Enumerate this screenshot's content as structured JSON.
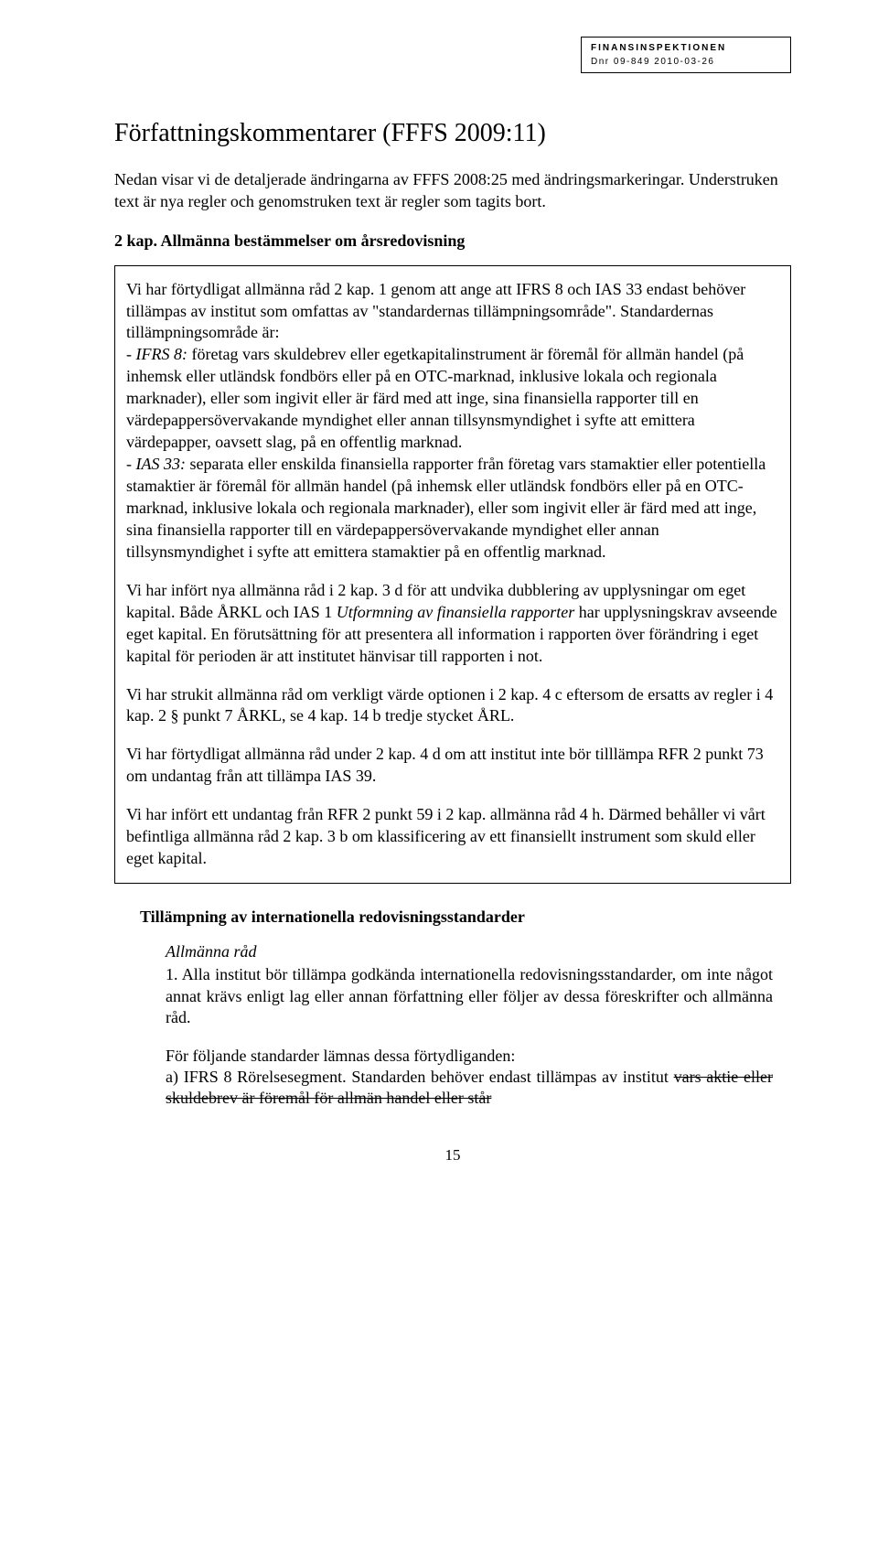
{
  "header": {
    "org": "FINANSINSPEKTIONEN",
    "ref": "Dnr 09-849 2010-03-26"
  },
  "title": "Författningskommentarer (FFFS 2009:11)",
  "intro": "Nedan visar vi de detaljerade ändringarna av FFFS 2008:25 med ändringsmarkeringar. Understruken text är nya regler och genomstruken text är regler som tagits bort.",
  "section_heading": "2 kap. Allmänna bestämmelser om årsredovisning",
  "box": {
    "p1a": "Vi har förtydligat allmänna råd 2 kap. 1 genom att ange att IFRS 8 och IAS 33 endast behöver tillämpas av institut som omfattas av \"standardernas tillämpningsområde\". Standardernas tillämpningsområde är:",
    "p1b_label": "- IFRS 8:",
    "p1b": " företag vars skuldebrev eller egetkapitalinstrument är föremål för allmän handel (på inhemsk eller utländsk fondbörs eller på en OTC-marknad, inklusive lokala och regionala marknader), eller som ingivit eller är färd med att inge, sina finansiella rapporter till en värdepappersövervakande myndighet eller annan tillsynsmyndighet i syfte att emittera värdepapper, oavsett slag, på en offentlig marknad.",
    "p1c_label": "- IAS 33:",
    "p1c": " separata eller enskilda finansiella rapporter från företag vars stamaktier eller potentiella stamaktier är föremål för allmän handel (på inhemsk eller utländsk fondbörs eller på en OTC-marknad, inklusive lokala och regionala marknader), eller som ingivit eller är färd med att inge, sina finansiella rapporter till en värdepappersövervakande myndighet eller annan tillsynsmyndighet i syfte att emittera stamaktier på en offentlig marknad.",
    "p2a": "Vi har infört nya allmänna råd i 2 kap. 3 d för att undvika dubblering av upplysningar om eget kapital. Både ÅRKL och IAS 1 ",
    "p2b_italic": "Utformning av finansiella rapporter",
    "p2c": " har upplysningskrav avseende eget kapital. En förutsättning för att presentera all information i rapporten över förändring i eget kapital för perioden är att institutet hänvisar till rapporten i not.",
    "p3": "Vi har strukit allmänna råd om verkligt värde optionen i 2 kap. 4 c eftersom de ersatts av regler i 4 kap. 2 § punkt 7 ÅRKL, se 4 kap. 14 b tredje stycket ÅRL.",
    "p4": "Vi har förtydligat allmänna råd under 2 kap. 4 d om att institut inte bör tilllämpa RFR 2 punkt 73 om undantag från att tillämpa IAS 39.",
    "p5": "Vi har infört ett undantag från RFR 2 punkt 59 i 2 kap. allmänna råd 4 h. Därmed behåller vi vårt befintliga allmänna råd 2 kap. 3 b om klassificering av ett finansiellt instrument som skuld eller eget kapital."
  },
  "sub_heading": "Tillämpning av internationella redovisningsstandarder",
  "indent": {
    "head": "Allmänna råd",
    "p1": "1. Alla institut bör tillämpa godkända internationella redovisningsstandarder, om inte något annat krävs enligt lag eller annan författning eller följer av dessa föreskrifter och allmänna råd.",
    "p2a": "För följande standarder lämnas dessa förtydliganden:",
    "p2b": "a) IFRS 8 Rörelsesegment. Standarden behöver endast tillämpas av institut ",
    "p2c_strike": "vars aktie eller skuldebrev är föremål för allmän handel eller står"
  },
  "page_number": "15"
}
